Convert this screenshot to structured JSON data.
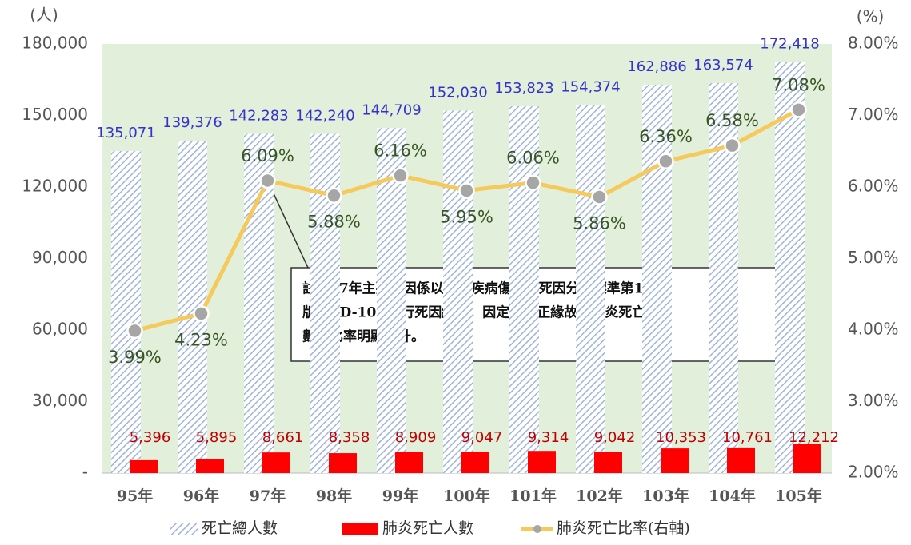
{
  "chart_data": {
    "type": "bar",
    "y_label": "(人)",
    "y2_label": "(%)",
    "categories": [
      "95年",
      "96年",
      "97年",
      "98年",
      "99年",
      "100年",
      "101年",
      "102年",
      "103年",
      "104年",
      "105年"
    ],
    "series": [
      {
        "name": "死亡總人數",
        "type": "bar",
        "color": "#9fb3d9",
        "values": [
          135071,
          139376,
          142283,
          142240,
          144709,
          152030,
          153823,
          154374,
          162886,
          163574,
          172418
        ],
        "value_labels": [
          "135,071",
          "139,376",
          "142,283",
          "142,240",
          "144,709",
          "152,030",
          "153,823",
          "154,374",
          "162,886",
          "163,574",
          "172,418"
        ],
        "label_color": "#3333cc"
      },
      {
        "name": "肺炎死亡人數",
        "type": "bar",
        "color": "#ff0000",
        "values": [
          5396,
          5895,
          8661,
          8358,
          8909,
          9047,
          9314,
          9042,
          10353,
          10761,
          12212
        ],
        "value_labels": [
          "5,396",
          "5,895",
          "8,661",
          "8,358",
          "8,909",
          "9,047",
          "9,314",
          "9,042",
          "10,353",
          "10,761",
          "12,212"
        ],
        "label_color": "#c00000"
      },
      {
        "name": "肺炎死亡比率(右軸)",
        "type": "line",
        "axis": "y2",
        "color": "#f5c95a",
        "marker_color": "#a6a6a6",
        "values": [
          3.99,
          4.23,
          6.09,
          5.88,
          6.16,
          5.95,
          6.06,
          5.86,
          6.36,
          6.58,
          7.08
        ],
        "value_labels": [
          "3.99%",
          "4.23%",
          "6.09%",
          "5.88%",
          "6.16%",
          "5.95%",
          "6.06%",
          "5.86%",
          "6.36%",
          "6.58%",
          "7.08%"
        ],
        "label_color": "#375623"
      }
    ],
    "ylim": [
      0,
      180000
    ],
    "yticks": [
      {
        "value": 0,
        "label": "-"
      },
      {
        "value": 30000,
        "label": "30,000"
      },
      {
        "value": 60000,
        "label": "60,000"
      },
      {
        "value": 90000,
        "label": "90,000"
      },
      {
        "value": 120000,
        "label": "120,000"
      },
      {
        "value": 150000,
        "label": "150,000"
      },
      {
        "value": 180000,
        "label": "180,000"
      }
    ],
    "y2lim": [
      2,
      8
    ],
    "y2ticks": [
      {
        "value": 2,
        "label": "2.00%"
      },
      {
        "value": 3,
        "label": "3.00%"
      },
      {
        "value": 4,
        "label": "4.00%"
      },
      {
        "value": 5,
        "label": "5.00%"
      },
      {
        "value": 6,
        "label": "6.00%"
      },
      {
        "value": 7,
        "label": "7.00%"
      },
      {
        "value": 8,
        "label": "8.00%"
      }
    ],
    "annotation": [
      "註：97年主要死因係以國際疾病傷害及死因分類標準第10",
      "版(ICD-10 )進行死因統計，因定義修正緣故，肺炎死亡人",
      "數及比率明顯上升。"
    ],
    "background": "#e2efda"
  }
}
